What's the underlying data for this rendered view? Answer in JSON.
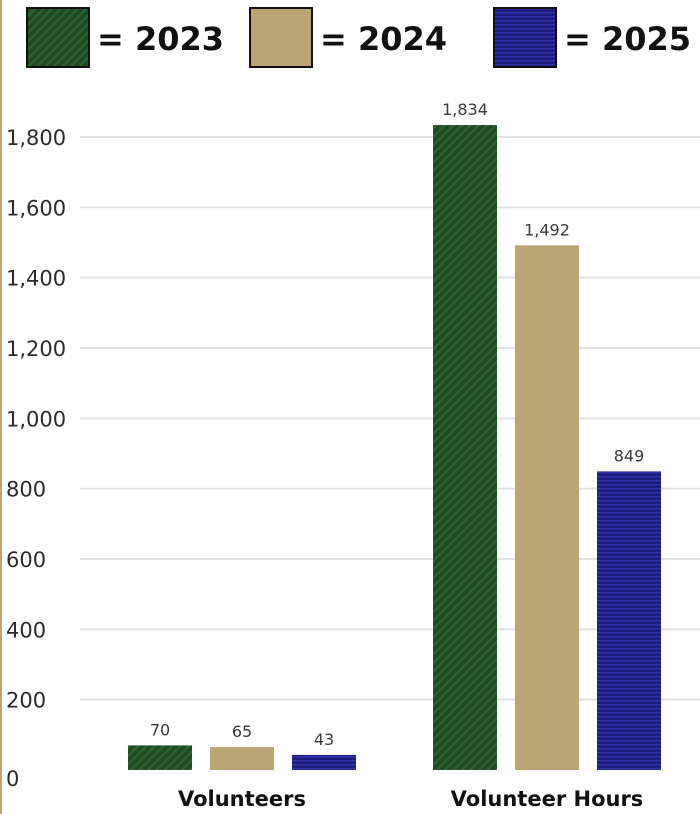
{
  "chart_data": {
    "type": "bar",
    "categories": [
      "Volunteers",
      "Volunteer Hours"
    ],
    "series": [
      {
        "name": "= 2023",
        "values": [
          70,
          1834
        ],
        "value_labels": [
          "70",
          "1,834"
        ],
        "color": "#1f4a22",
        "pattern": "diagonal-stripes"
      },
      {
        "name": "= 2024",
        "values": [
          65,
          1492
        ],
        "value_labels": [
          "65",
          "1,492"
        ],
        "color": "#bba574",
        "pattern": "solid"
      },
      {
        "name": "= 2025",
        "values": [
          43,
          849
        ],
        "value_labels": [
          "43",
          "849"
        ],
        "color": "#1c1c7e",
        "pattern": "horizontal-stripes"
      }
    ],
    "yticks": [
      0,
      200,
      400,
      600,
      800,
      1000,
      1200,
      1400,
      1600,
      1800
    ],
    "ytick_labels": [
      "0",
      "200",
      "400",
      "600",
      "800",
      "1,000",
      "1,200",
      "1,400",
      "1,600",
      "1,800"
    ],
    "ylim": [
      0,
      1800
    ],
    "grid": true,
    "legend_position": "top",
    "title": "",
    "xlabel": "",
    "ylabel": ""
  },
  "colors": {
    "frame": "#bfa46a",
    "grid": "#e2e2e2"
  }
}
